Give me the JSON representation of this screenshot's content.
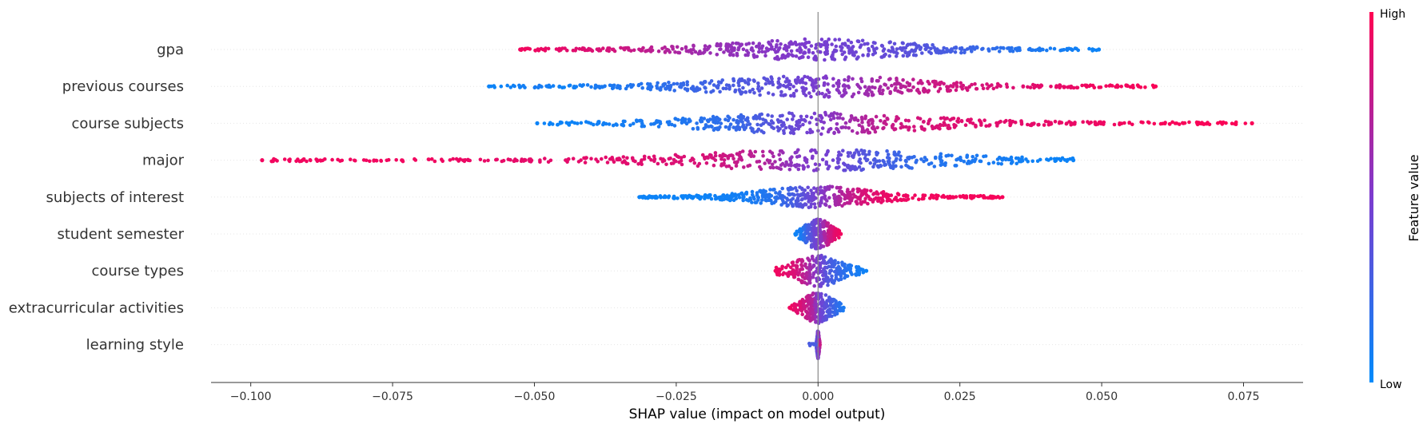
{
  "chart_data": {
    "type": "scatter",
    "subtype": "beeswarm",
    "xlabel": "SHAP value (impact on model output)",
    "xlim": [
      -0.107,
      0.0855
    ],
    "xticks": [
      -0.1,
      -0.075,
      -0.05,
      -0.025,
      0.0,
      0.025,
      0.05,
      0.075
    ],
    "xtick_labels": [
      "−0.100",
      "−0.075",
      "−0.050",
      "−0.025",
      "0.000",
      "0.025",
      "0.050",
      "0.075"
    ],
    "grid": false,
    "colorbar": {
      "title": "Feature value",
      "high_label": "High",
      "low_label": "Low",
      "low_color": "#008bfb",
      "mid_color": "#7c3ccf",
      "high_color": "#ff0052"
    },
    "features": [
      {
        "name": "gpa",
        "min": -0.0525,
        "max": 0.0495,
        "points": [
          [
            -0.052,
            0.95
          ],
          [
            -0.045,
            0.9
          ],
          [
            -0.038,
            0.85
          ],
          [
            -0.03,
            0.75
          ],
          [
            -0.02,
            0.62
          ],
          [
            -0.01,
            0.55
          ],
          [
            -0.002,
            0.5
          ],
          [
            0.005,
            0.45
          ],
          [
            0.012,
            0.4
          ],
          [
            0.02,
            0.32
          ],
          [
            0.03,
            0.2
          ],
          [
            0.04,
            0.1
          ],
          [
            0.049,
            0.05
          ]
        ]
      },
      {
        "name": "previous courses",
        "min": -0.058,
        "max": 0.0595,
        "points": [
          [
            -0.058,
            0.05
          ],
          [
            -0.056,
            0.05
          ],
          [
            -0.049,
            0.1
          ],
          [
            -0.045,
            0.05
          ],
          [
            -0.04,
            0.1
          ],
          [
            -0.03,
            0.15
          ],
          [
            -0.02,
            0.25
          ],
          [
            -0.01,
            0.35
          ],
          [
            0.0,
            0.5
          ],
          [
            0.01,
            0.65
          ],
          [
            0.02,
            0.8
          ],
          [
            0.03,
            0.85
          ],
          [
            0.04,
            0.9
          ],
          [
            0.045,
            0.92
          ],
          [
            0.048,
            0.95
          ],
          [
            0.054,
            0.95
          ],
          [
            0.0595,
            0.98
          ]
        ]
      },
      {
        "name": "course subjects",
        "min": -0.0495,
        "max": 0.0765,
        "points": [
          [
            -0.0495,
            0.05
          ],
          [
            -0.044,
            0.05
          ],
          [
            -0.035,
            0.08
          ],
          [
            -0.025,
            0.12
          ],
          [
            -0.015,
            0.2
          ],
          [
            -0.008,
            0.35
          ],
          [
            0.0,
            0.5
          ],
          [
            0.008,
            0.7
          ],
          [
            0.015,
            0.82
          ],
          [
            0.025,
            0.88
          ],
          [
            0.035,
            0.9
          ],
          [
            0.045,
            0.92
          ],
          [
            0.054,
            0.95
          ],
          [
            0.0595,
            0.97
          ],
          [
            0.072,
            0.98
          ],
          [
            0.0765,
            0.98
          ]
        ]
      },
      {
        "name": "major",
        "min": -0.098,
        "max": 0.045,
        "points": [
          [
            -0.098,
            0.95
          ],
          [
            -0.07,
            0.95
          ],
          [
            -0.06,
            0.92
          ],
          [
            -0.05,
            0.9
          ],
          [
            -0.04,
            0.9
          ],
          [
            -0.03,
            0.88
          ],
          [
            -0.02,
            0.85
          ],
          [
            -0.01,
            0.72
          ],
          [
            -0.004,
            0.55
          ],
          [
            0.0,
            0.5
          ],
          [
            0.01,
            0.3
          ],
          [
            0.02,
            0.15
          ],
          [
            0.03,
            0.1
          ],
          [
            0.04,
            0.05
          ],
          [
            0.045,
            0.05
          ]
        ]
      },
      {
        "name": "subjects of interest",
        "min": -0.0315,
        "max": 0.0325,
        "points": [
          [
            -0.0315,
            0.05
          ],
          [
            -0.021,
            0.05
          ],
          [
            -0.013,
            0.08
          ],
          [
            -0.008,
            0.15
          ],
          [
            -0.004,
            0.3
          ],
          [
            0.0,
            0.5
          ],
          [
            0.004,
            0.7
          ],
          [
            0.008,
            0.85
          ],
          [
            0.012,
            0.92
          ],
          [
            0.0175,
            0.95
          ],
          [
            0.0325,
            0.97
          ]
        ]
      },
      {
        "name": "student semester",
        "min": -0.004,
        "max": 0.004,
        "points": [
          [
            -0.004,
            0.05
          ],
          [
            -0.003,
            0.1
          ],
          [
            -0.002,
            0.25
          ],
          [
            -0.001,
            0.4
          ],
          [
            0.0,
            0.5
          ],
          [
            0.001,
            0.65
          ],
          [
            0.002,
            0.8
          ],
          [
            0.003,
            0.9
          ],
          [
            0.004,
            0.95
          ]
        ]
      },
      {
        "name": "course types",
        "min": -0.0075,
        "max": 0.0085,
        "points": [
          [
            -0.0075,
            0.95
          ],
          [
            -0.004,
            0.85
          ],
          [
            -0.002,
            0.7
          ],
          [
            0.0,
            0.5
          ],
          [
            0.002,
            0.3
          ],
          [
            0.005,
            0.15
          ],
          [
            0.0085,
            0.05
          ]
        ]
      },
      {
        "name": "extracurricular activities",
        "min": -0.005,
        "max": 0.0045,
        "points": [
          [
            -0.005,
            0.95
          ],
          [
            -0.003,
            0.85
          ],
          [
            -0.001,
            0.7
          ],
          [
            0.0,
            0.5
          ],
          [
            0.002,
            0.3
          ],
          [
            0.0045,
            0.1
          ]
        ]
      },
      {
        "name": "learning style",
        "min": -0.0003,
        "max": 0.0003,
        "points": [
          [
            -0.0003,
            0.3
          ],
          [
            0.0,
            0.5
          ],
          [
            0.0003,
            0.8
          ]
        ]
      }
    ]
  }
}
